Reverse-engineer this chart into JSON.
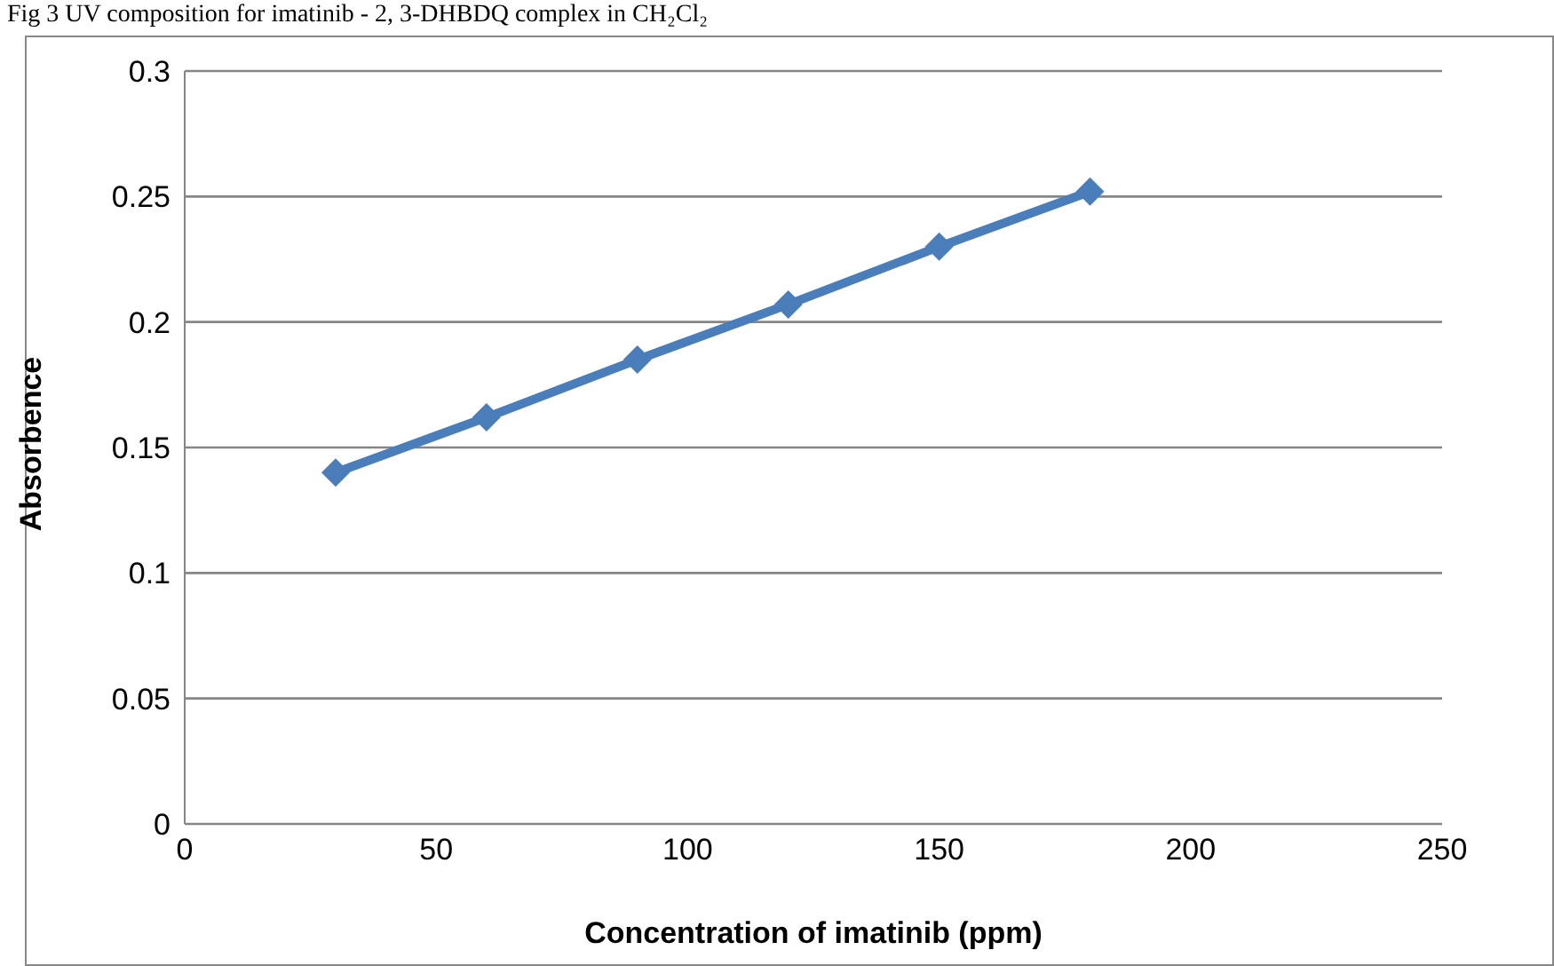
{
  "chart_data": {
    "type": "line",
    "title": "Fig 3 UV composition for imatinib - 2, 3-DHBDQ complex in CH₂Cl₂",
    "xlabel": "Concentration of imatinib (ppm)",
    "ylabel": "Absorbence",
    "x": [
      30,
      60,
      90,
      120,
      150,
      180
    ],
    "series": [
      {
        "color": "#4a7ebb",
        "values": [
          0.14,
          0.162,
          0.185,
          0.207,
          0.23,
          0.252
        ]
      }
    ],
    "xlim": [
      0,
      250
    ],
    "xticks": [
      0,
      50,
      100,
      150,
      200,
      250
    ],
    "ylim": [
      0,
      0.3
    ],
    "yticks": [
      0,
      0.05,
      0.1,
      0.15,
      0.2,
      0.25,
      0.3
    ],
    "grid": "y",
    "marker": "diamond",
    "line_style": "solid",
    "legend": false
  }
}
